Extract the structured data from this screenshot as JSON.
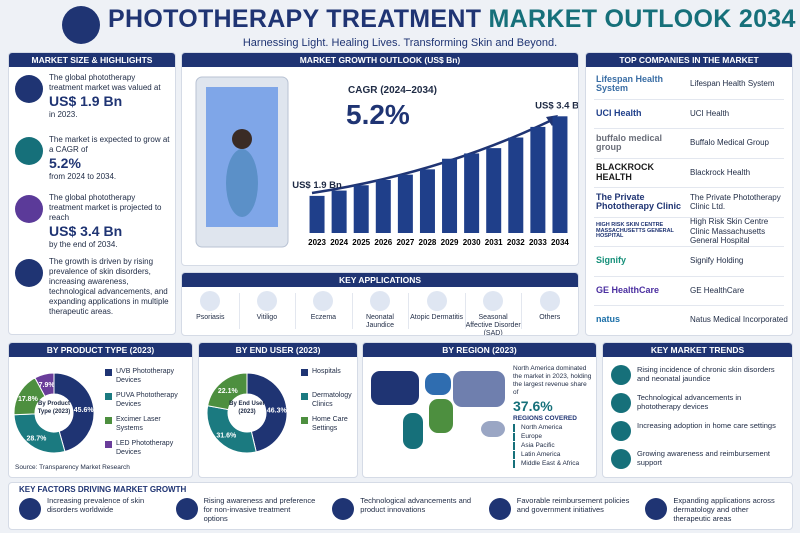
{
  "header": {
    "title_part1": "PHOTOTHERAPY TREATMENT",
    "title_part2": "MARKET OUTLOOK 2034",
    "subtitle": "Harnessing Light. Healing Lives. Transforming Skin and Beyond."
  },
  "highlights": {
    "title": "MARKET SIZE & HIGHLIGHTS",
    "items": [
      {
        "text": "The global phototherapy treatment market was valued at",
        "value": "US$ 1.9 Bn",
        "note": "in 2023."
      },
      {
        "text": "The market is expected to grow at a CAGR of",
        "value": "5.2%",
        "note": "from 2024 to 2034."
      },
      {
        "text": "The global phototherapy treatment market is projected to reach",
        "value": "US$ 3.4 Bn",
        "note": "by the end of 2034."
      },
      {
        "text": "The growth is driven by rising prevalence of skin disorders, increasing awareness, technological advancements, and expanding applications in multiple therapeutic areas."
      }
    ]
  },
  "applications": {
    "title": "KEY APPLICATIONS",
    "items": [
      "Psoriasis",
      "Vitiligo",
      "Eczema",
      "Neonatal Jaundice",
      "Atopic Dermatitis",
      "Seasonal Affective Disorder (SAD)",
      "Others"
    ]
  },
  "companies": {
    "title": "TOP COMPANIES IN THE MARKET",
    "items": [
      {
        "logo": "Lifespan Health System",
        "name": "Lifespan Health System"
      },
      {
        "logo": "UCI Health",
        "name": "UCI Health"
      },
      {
        "logo": "buffalo medical group",
        "name": "Buffalo Medical Group"
      },
      {
        "logo": "BLACKROCK HEALTH",
        "name": "Blackrock Health"
      },
      {
        "logo": "The Private Phototherapy Clinic",
        "name": "The Private Phototherapy Clinic Ltd."
      },
      {
        "logo": "HIGH RISK SKIN CENTRE MASSACHUSETTS GENERAL HOSPITAL",
        "name": "High Risk Skin Centre Clinic Massachusetts General Hospital"
      },
      {
        "logo": "Signify",
        "name": "Signify Holding"
      },
      {
        "logo": "GE HealthCare",
        "name": "GE HealthCare"
      },
      {
        "logo": "natus",
        "name": "Natus Medical Incorporated"
      }
    ]
  },
  "region": {
    "title": "BY REGION (2023)",
    "text": "North America dominated the market in 2023, holding the largest revenue share of",
    "value": "37.6%",
    "list_title": "REGIONS COVERED",
    "regions": [
      "North America",
      "Europe",
      "Asia Pacific",
      "Latin America",
      "Middle East & Africa"
    ]
  },
  "trends": {
    "title": "KEY MARKET TRENDS",
    "items": [
      "Rising incidence of chronic skin disorders and neonatal jaundice",
      "Technological advancements in phototherapy devices",
      "Increasing adoption in home care settings",
      "Growing awareness and reimbursement support"
    ]
  },
  "factors": {
    "title": "KEY FACTORS DRIVING MARKET GROWTH",
    "items": [
      "Increasing prevalence of skin disorders worldwide",
      "Rising awareness and preference for non-invasive treatment options",
      "Technological advancements and product innovations",
      "Favorable reimbursement policies and government initiatives",
      "Expanding applications across dermatology and other therapeutic areas"
    ]
  },
  "chart_data": [
    {
      "type": "bar",
      "title": "MARKET GROWTH OUTLOOK (US$ Bn)",
      "annotation": "CAGR (2024–2034)",
      "annotation_value": "5.2%",
      "categories": [
        "2023",
        "2024",
        "2025",
        "2026",
        "2027",
        "2028",
        "2029",
        "2030",
        "2031",
        "2032",
        "2033",
        "2034"
      ],
      "values": [
        1.9,
        2.0,
        2.1,
        2.2,
        2.3,
        2.4,
        2.6,
        2.7,
        2.8,
        3.0,
        3.2,
        3.4
      ],
      "value_labels": [
        "US$ 1.9 Bn",
        null,
        null,
        null,
        null,
        null,
        null,
        null,
        null,
        null,
        null,
        "US$ 3.4 Bn"
      ],
      "color": "#1f3f8a",
      "ylim": [
        1.2,
        3.5
      ]
    },
    {
      "type": "pie",
      "title": "BY PRODUCT TYPE (2023)",
      "center_label": "By Product Type (2023)",
      "categories": [
        "UVB Phototherapy Devices",
        "PUVA Phototherapy Devices",
        "Excimer Laser Systems",
        "LED Phototherapy Devices"
      ],
      "values": [
        45.6,
        28.7,
        17.8,
        7.9
      ],
      "value_labels": [
        "45.6%",
        "28.7%",
        "17.8%",
        "7.9%"
      ],
      "colors": [
        "#1f3473",
        "#1b7a80",
        "#4d8f3f",
        "#6a3d9a"
      ],
      "source": "Source: Transparency Market Research"
    },
    {
      "type": "pie",
      "title": "BY END USER (2023)",
      "center_label": "By End User (2023)",
      "categories": [
        "Hospitals",
        "Dermatology Clinics",
        "Home Care Settings"
      ],
      "values": [
        46.3,
        31.6,
        22.1
      ],
      "value_labels": [
        "46.3%",
        "31.6%",
        "22.1%"
      ],
      "colors": [
        "#1f3473",
        "#1b7a80",
        "#4d8f3f"
      ]
    }
  ]
}
